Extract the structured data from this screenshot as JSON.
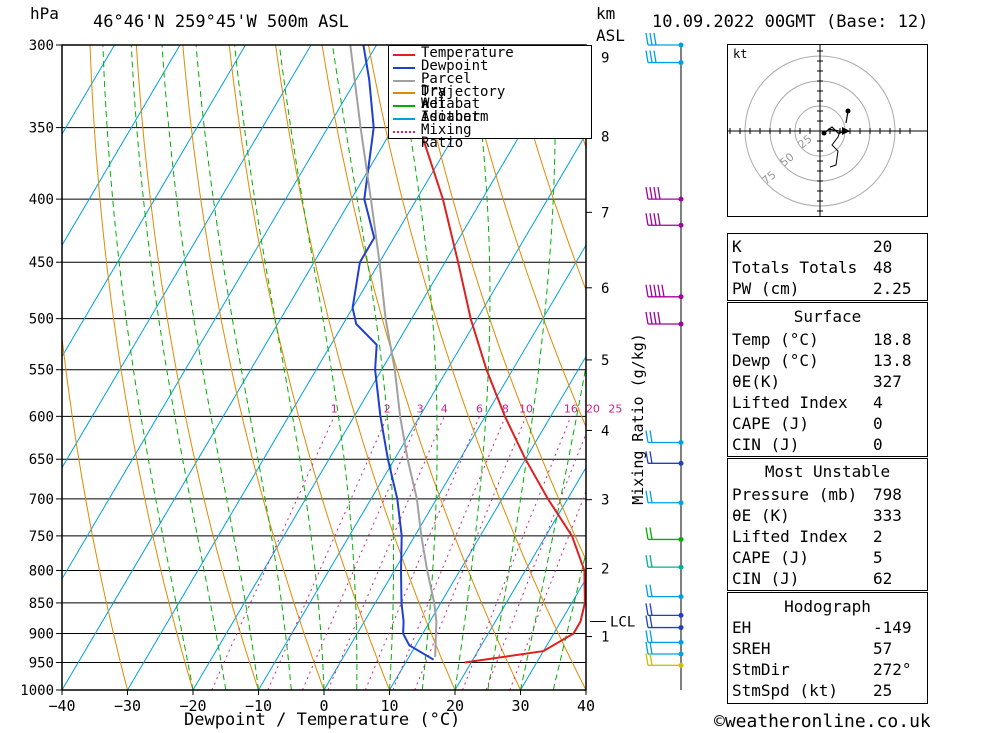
{
  "header": {
    "location": "46°46'N 259°45'W 500m ASL",
    "datetime": "10.09.2022 00GMT (Base: 12)",
    "left_unit": "hPa",
    "right_unit_km": "km",
    "right_unit_asl": "ASL"
  },
  "footer": {
    "credit": "©weatheronline.co.uk"
  },
  "colors": {
    "temperature": "#e02020",
    "dewpoint": "#1f3fcf",
    "parcel": "#a0a0a0",
    "dry_adiabat": "#e08a00",
    "wet_adiabat": "#00b000",
    "isotherm": "#00a0e0",
    "mixing_ratio": "#d0208a"
  },
  "chart_data": {
    "type": "line",
    "title": "",
    "xlabel": "Dewpoint / Temperature (°C)",
    "ylabel": "hPa",
    "xlim": [
      -40,
      40
    ],
    "ylim": [
      1000,
      300
    ],
    "x_ticks": [
      "−40",
      "−30",
      "−20",
      "−10",
      "0",
      "10",
      "20",
      "30",
      "40"
    ],
    "pressure_levels": [
      300,
      350,
      400,
      450,
      500,
      550,
      600,
      650,
      700,
      750,
      800,
      850,
      900,
      950,
      1000
    ],
    "pressure_labels": [
      "300",
      "350",
      "400",
      "450",
      "500",
      "550",
      "600",
      "650",
      "700",
      "750",
      "800",
      "850",
      "900",
      "950",
      "1000"
    ],
    "height_km": [
      {
        "label": "1",
        "p": 905
      },
      {
        "label": "2",
        "p": 797
      },
      {
        "label": "3",
        "p": 701
      },
      {
        "label": "4",
        "p": 616
      },
      {
        "label": "5",
        "p": 540
      },
      {
        "label": "6",
        "p": 472
      },
      {
        "label": "7",
        "p": 410
      },
      {
        "label": "8",
        "p": 356
      },
      {
        "label": "9",
        "p": 307
      }
    ],
    "lcl": {
      "label": "LCL",
      "p": 880
    },
    "mixing_ratio_axis_label": "Mixing Ratio (g/kg)",
    "mixing_ratio_labels": [
      "1",
      "2",
      "3",
      "4",
      "6",
      "8",
      "10",
      "16",
      "20",
      "25"
    ],
    "legend": [
      "Temperature",
      "Dewpoint",
      "Parcel Trajectory",
      "Dry Adiabat",
      "Wet Adiabat",
      "Isotherm",
      "Mixing Ratio"
    ],
    "legend_placement": "top-center",
    "series": [
      {
        "name": "Temperature",
        "points": [
          [
            950,
            19
          ],
          [
            930,
            30
          ],
          [
            900,
            33
          ],
          [
            880,
            33
          ],
          [
            850,
            32
          ],
          [
            800,
            29
          ],
          [
            750,
            24
          ],
          [
            700,
            17
          ],
          [
            650,
            10
          ],
          [
            600,
            3
          ],
          [
            550,
            -4
          ],
          [
            500,
            -11
          ],
          [
            450,
            -18
          ],
          [
            400,
            -26
          ],
          [
            350,
            -36
          ],
          [
            300,
            -46
          ]
        ]
      },
      {
        "name": "Dewpoint",
        "points": [
          [
            945,
            14
          ],
          [
            920,
            9
          ],
          [
            900,
            7
          ],
          [
            880,
            6
          ],
          [
            850,
            4
          ],
          [
            800,
            1
          ],
          [
            750,
            -2
          ],
          [
            700,
            -6
          ],
          [
            650,
            -11
          ],
          [
            600,
            -16
          ],
          [
            550,
            -21
          ],
          [
            525,
            -23
          ],
          [
            505,
            -28
          ],
          [
            490,
            -30
          ],
          [
            450,
            -33
          ],
          [
            430,
            -33
          ],
          [
            400,
            -38
          ],
          [
            350,
            -43
          ],
          [
            320,
            -48
          ],
          [
            300,
            -52
          ]
        ]
      },
      {
        "name": "Parcel Trajectory",
        "points": [
          [
            940,
            14
          ],
          [
            900,
            12
          ],
          [
            880,
            11
          ],
          [
            850,
            9
          ],
          [
            800,
            5
          ],
          [
            750,
            1
          ],
          [
            700,
            -3
          ],
          [
            650,
            -8
          ],
          [
            600,
            -13
          ],
          [
            550,
            -18
          ],
          [
            500,
            -24
          ],
          [
            450,
            -30
          ],
          [
            400,
            -37
          ],
          [
            350,
            -45
          ],
          [
            300,
            -54
          ]
        ]
      }
    ]
  },
  "indices": {
    "rows": [
      {
        "label": "K",
        "value": "20"
      },
      {
        "label": "Totals Totals",
        "value": "48"
      },
      {
        "label": "PW (cm)",
        "value": "2.25"
      }
    ]
  },
  "surface": {
    "title": "Surface",
    "rows": [
      {
        "label": "Temp (°C)",
        "value": "18.8"
      },
      {
        "label": "Dewp (°C)",
        "value": "13.8"
      },
      {
        "label": "θE(K)",
        "value": "327"
      },
      {
        "label": "Lifted Index",
        "value": "4"
      },
      {
        "label": "CAPE (J)",
        "value": "0"
      },
      {
        "label": "CIN (J)",
        "value": "0"
      }
    ]
  },
  "most_unstable": {
    "title": "Most Unstable",
    "rows": [
      {
        "label": "Pressure (mb)",
        "value": "798"
      },
      {
        "label": "θE (K)",
        "value": "333"
      },
      {
        "label": "Lifted Index",
        "value": "2"
      },
      {
        "label": "CAPE (J)",
        "value": "5"
      },
      {
        "label": "CIN (J)",
        "value": "62"
      }
    ]
  },
  "hodograph": {
    "title": "Hodograph",
    "unit": "kt",
    "ring_labels": [
      "25",
      "50",
      "75"
    ],
    "rows": [
      {
        "label": "EH",
        "value": "-149"
      },
      {
        "label": "SREH",
        "value": "57"
      },
      {
        "label": "StmDir",
        "value": "272°"
      },
      {
        "label": "StmSpd (kt)",
        "value": "25"
      }
    ]
  }
}
